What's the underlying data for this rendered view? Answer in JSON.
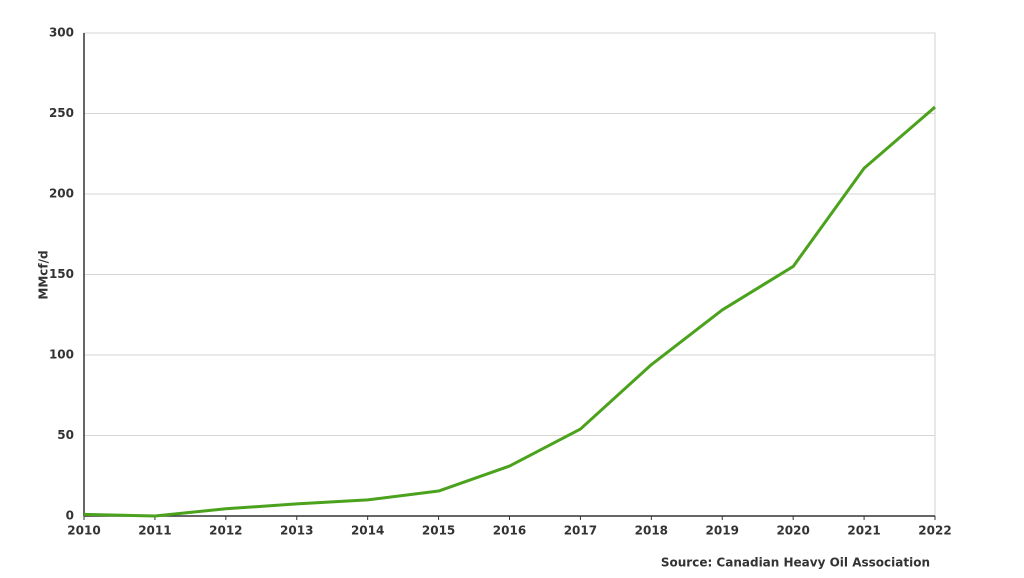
{
  "chart_data": {
    "type": "line",
    "y_label": "MMcf/d",
    "source": "Source: Canadian Heavy Oil Association",
    "x": [
      2010,
      2011,
      2012,
      2013,
      2014,
      2015,
      2016,
      2017,
      2018,
      2019,
      2020,
      2021,
      2022
    ],
    "series": [
      {
        "name": "MMcf/d",
        "color": "#4ba21d",
        "values": [
          1,
          0,
          4.5,
          7.5,
          10,
          15.5,
          31,
          54,
          94,
          128,
          155,
          216,
          254
        ]
      }
    ],
    "xlim": [
      2010,
      2022
    ],
    "xticks": [
      2010,
      2011,
      2012,
      2013,
      2014,
      2015,
      2016,
      2017,
      2018,
      2019,
      2020,
      2021,
      2022
    ],
    "ylim": [
      0,
      300
    ],
    "yticks": [
      0,
      50,
      100,
      150,
      200,
      250,
      300
    ],
    "grid": true
  }
}
